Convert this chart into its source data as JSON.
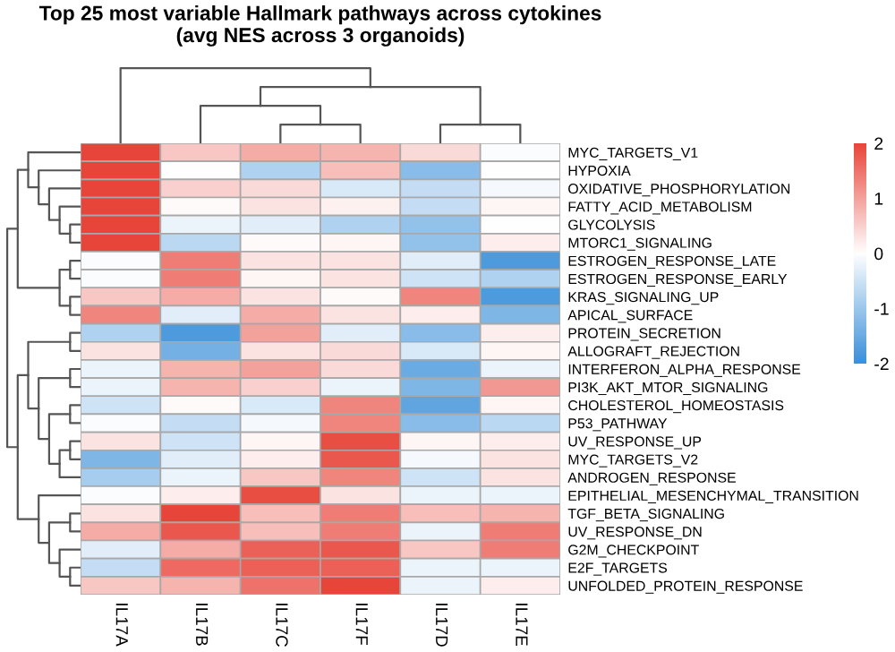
{
  "chart_data": {
    "type": "heatmap",
    "title": "Top 25 most variable Hallmark pathways across cytokines\n(avg NES across 3 organoids)",
    "categories": [
      "IL17A",
      "IL17B",
      "IL17C",
      "IL17F",
      "IL17D",
      "IL17E"
    ],
    "y_categories": [
      "MYC_TARGETS_V1",
      "HYPOXIA",
      "OXIDATIVE_PHOSPHORYLATION",
      "FATTY_ACID_METABOLISM",
      "GLYCOLYSIS",
      "MTORC1_SIGNALING",
      "ESTROGEN_RESPONSE_LATE",
      "ESTROGEN_RESPONSE_EARLY",
      "KRAS_SIGNALING_UP",
      "APICAL_SURFACE",
      "PROTEIN_SECRETION",
      "ALLOGRAFT_REJECTION",
      "INTERFERON_ALPHA_RESPONSE",
      "PI3K_AKT_MTOR_SIGNALING",
      "CHOLESTEROL_HOMEOSTASIS",
      "P53_PATHWAY",
      "UV_RESPONSE_UP",
      "MYC_TARGETS_V2",
      "ANDROGEN_RESPONSE",
      "EPITHELIAL_MESENCHYMAL_TRANSITION",
      "TGF_BETA_SIGNALING",
      "UV_RESPONSE_DN",
      "G2M_CHECKPOINT",
      "E2F_TARGETS",
      "UNFOLDED_PROTEIN_RESPONSE"
    ],
    "cells": [
      [
        2.0,
        0.6,
        0.9,
        0.8,
        0.4,
        -0.05
      ],
      [
        2.0,
        0.0,
        -0.8,
        0.7,
        -1.2,
        0.0
      ],
      [
        2.0,
        0.5,
        0.4,
        -0.4,
        -0.6,
        -0.1
      ],
      [
        2.0,
        0.05,
        0.3,
        0.15,
        -0.6,
        0.1
      ],
      [
        2.0,
        -0.2,
        -0.3,
        -0.8,
        -1.1,
        0.0
      ],
      [
        2.0,
        -0.7,
        0.05,
        0.1,
        -1.1,
        0.2
      ],
      [
        -0.05,
        1.4,
        0.3,
        0.3,
        -0.3,
        -1.8
      ],
      [
        -0.05,
        1.4,
        0.1,
        0.3,
        -0.5,
        -0.8
      ],
      [
        0.6,
        0.9,
        0.3,
        0.05,
        1.3,
        -1.8
      ],
      [
        1.3,
        -0.3,
        0.9,
        0.3,
        0.2,
        -1.3
      ],
      [
        -0.8,
        -1.8,
        1.0,
        -0.3,
        -1.2,
        0.2
      ],
      [
        0.3,
        -1.4,
        0.3,
        0.4,
        -0.4,
        0.1
      ],
      [
        -0.2,
        0.8,
        1.0,
        0.4,
        -1.5,
        -0.2
      ],
      [
        -0.2,
        0.8,
        0.5,
        -0.2,
        -1.3,
        1.1
      ],
      [
        -0.5,
        0.05,
        -0.4,
        1.3,
        -1.6,
        0.1
      ],
      [
        -0.05,
        -0.6,
        -0.1,
        1.3,
        -1.2,
        -0.7
      ],
      [
        0.3,
        -0.5,
        0.1,
        1.9,
        0.1,
        0.2
      ],
      [
        -1.3,
        -0.3,
        0.2,
        1.8,
        -0.1,
        0.3
      ],
      [
        -0.9,
        -0.2,
        0.6,
        1.3,
        -0.5,
        0.3
      ],
      [
        -0.05,
        0.2,
        1.9,
        0.3,
        -0.2,
        -0.2
      ],
      [
        0.3,
        2.0,
        0.7,
        1.4,
        0.7,
        0.8
      ],
      [
        0.9,
        1.8,
        0.7,
        1.4,
        -0.2,
        1.4
      ],
      [
        -0.3,
        0.9,
        1.7,
        1.8,
        0.6,
        1.4
      ],
      [
        -0.6,
        1.6,
        1.7,
        1.7,
        -0.2,
        -0.2
      ],
      [
        0.6,
        0.8,
        1.5,
        2.0,
        -0.2,
        0.2
      ]
    ],
    "clim": [
      -2,
      2
    ],
    "cticks": [
      -2,
      -1,
      0,
      1,
      2
    ]
  }
}
